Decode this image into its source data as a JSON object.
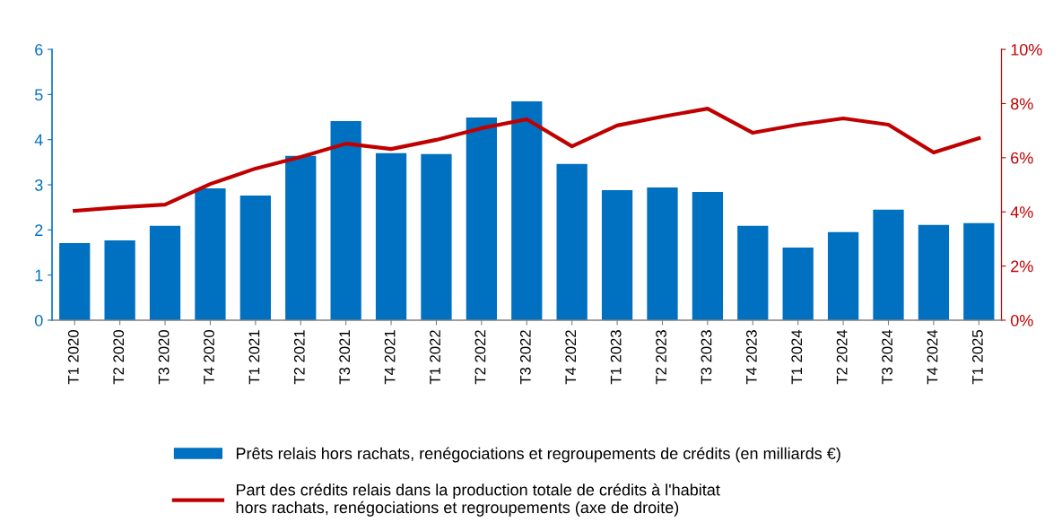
{
  "chart_data": {
    "type": "bar",
    "categories": [
      "T1 2020",
      "T2 2020",
      "T3 2020",
      "T4 2020",
      "T1 2021",
      "T2 2021",
      "T3 2021",
      "T4 2021",
      "T1 2022",
      "T2 2022",
      "T3 2022",
      "T4 2022",
      "T1 2023",
      "T2 2023",
      "T3 2023",
      "T4 2023",
      "T1 2024",
      "T2 2024",
      "T3 2024",
      "T4 2024",
      "T1 2025"
    ],
    "series": [
      {
        "name": "Prêts relais hors rachats, renégociations et regroupements de crédits (en milliards €)",
        "color": "#0070c0",
        "values": [
          1.71,
          1.77,
          2.09,
          2.92,
          2.76,
          3.64,
          4.41,
          3.7,
          3.68,
          4.49,
          4.85,
          3.46,
          2.88,
          2.94,
          2.84,
          2.09,
          1.61,
          1.95,
          2.45,
          2.11,
          2.15
        ]
      },
      {
        "name": "Part des crédits relais dans la production totale de crédits à l'habitat\nhors rachats, renégociations et regroupements (axe de droite)",
        "type": "line",
        "axis": "y2",
        "color": "#c00000",
        "values": [
          4.04,
          4.17,
          4.27,
          5.03,
          5.6,
          6.03,
          6.52,
          6.32,
          6.66,
          7.09,
          7.42,
          6.42,
          7.19,
          7.52,
          7.81,
          6.92,
          7.22,
          7.45,
          7.22,
          6.19,
          6.72
        ]
      }
    ],
    "ylim": [
      0,
      6
    ],
    "yticks": [
      0,
      1,
      2,
      3,
      4,
      5,
      6
    ],
    "y2lim": [
      0,
      10
    ],
    "y2ticks": [
      {
        "value": 0,
        "label": "0%"
      },
      {
        "value": 2,
        "label": "2%"
      },
      {
        "value": 4,
        "label": "4%"
      },
      {
        "value": 6,
        "label": "6%"
      },
      {
        "value": 8,
        "label": "8%"
      },
      {
        "value": 10,
        "label": "10%"
      }
    ],
    "grid": false,
    "legend": "bottom",
    "marker": "none",
    "line_style": "solid"
  }
}
